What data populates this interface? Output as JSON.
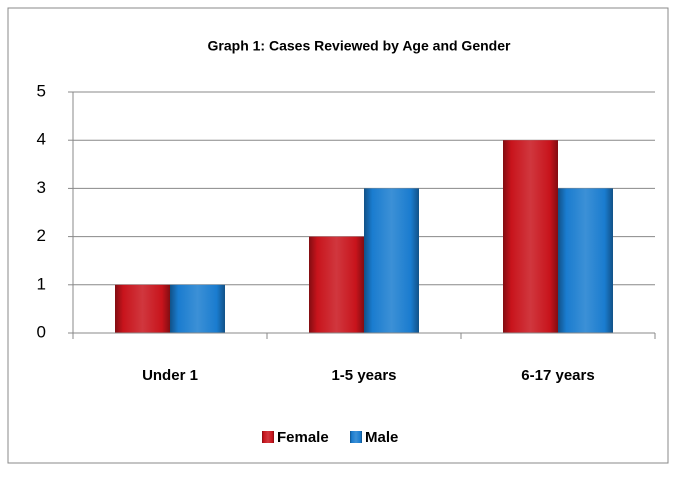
{
  "chart_data": {
    "type": "bar",
    "title": "Graph 1: Cases Reviewed by Age and Gender",
    "categories": [
      "Under 1",
      "1-5 years",
      "6-17 years"
    ],
    "series": [
      {
        "name": "Female",
        "color": "#c8141c",
        "values": [
          1,
          2,
          4
        ]
      },
      {
        "name": "Male",
        "color": "#1a7ccf",
        "values": [
          1,
          3,
          3
        ]
      }
    ],
    "ylim": [
      0,
      5
    ],
    "yticks": [
      0,
      1,
      2,
      3,
      4,
      5
    ],
    "grid": true,
    "legend": "bottom"
  }
}
